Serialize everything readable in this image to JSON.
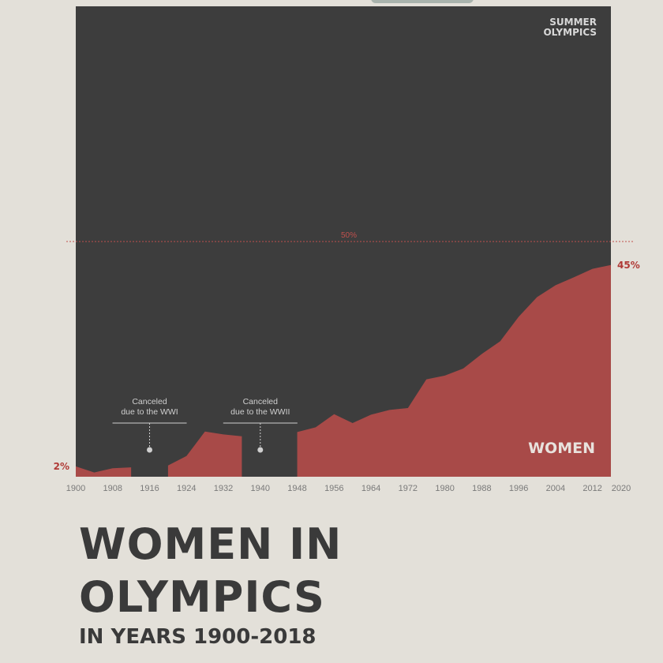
{
  "chart_data": {
    "type": "area",
    "title_lines": [
      "WOMEN IN",
      "OLYMPICS"
    ],
    "subtitle": "IN YEARS 1900-2018",
    "panel_label_lines": [
      "SUMMER",
      "OLYMPICS"
    ],
    "x": [
      1900,
      1904,
      1908,
      1912,
      1916,
      1920,
      1924,
      1928,
      1932,
      1936,
      1940,
      1944,
      1948,
      1952,
      1956,
      1960,
      1964,
      1968,
      1972,
      1976,
      1980,
      1984,
      1988,
      1992,
      1996,
      2000,
      2004,
      2008,
      2012,
      2016
    ],
    "series": [
      {
        "name": "WOMEN",
        "color": "#a84a48",
        "values": [
          2.2,
          0.9,
          1.8,
          2.0,
          null,
          2.4,
          4.4,
          9.6,
          9.0,
          8.6,
          null,
          null,
          9.5,
          10.5,
          13.3,
          11.4,
          13.2,
          14.2,
          14.6,
          20.7,
          21.5,
          23.0,
          26.1,
          28.8,
          34.0,
          38.2,
          40.7,
          42.4,
          44.2,
          45.0
        ],
        "value_labels": [
          "2%",
          null,
          null,
          null,
          null,
          null,
          null,
          null,
          null,
          null,
          null,
          null,
          null,
          null,
          null,
          null,
          null,
          null,
          null,
          null,
          null,
          null,
          null,
          null,
          null,
          null,
          null,
          null,
          null,
          "45%"
        ]
      }
    ],
    "xlim": [
      1900,
      2016
    ],
    "ylim": [
      0,
      100
    ],
    "xticks": [
      1900,
      1908,
      1916,
      1924,
      1932,
      1940,
      1948,
      1956,
      1964,
      1972,
      1980,
      1988,
      1996,
      2004,
      2012,
      2020
    ],
    "reference_line": {
      "value": 50,
      "label": "50%",
      "color": "#c0504d"
    },
    "panel_color": "#3d3d3d",
    "annotations": [
      {
        "x": 1916,
        "lines": [
          "Canceled",
          "due to the WWI"
        ]
      },
      {
        "x": 1940,
        "lines": [
          "Canceled",
          "due to the WWII"
        ]
      }
    ]
  }
}
